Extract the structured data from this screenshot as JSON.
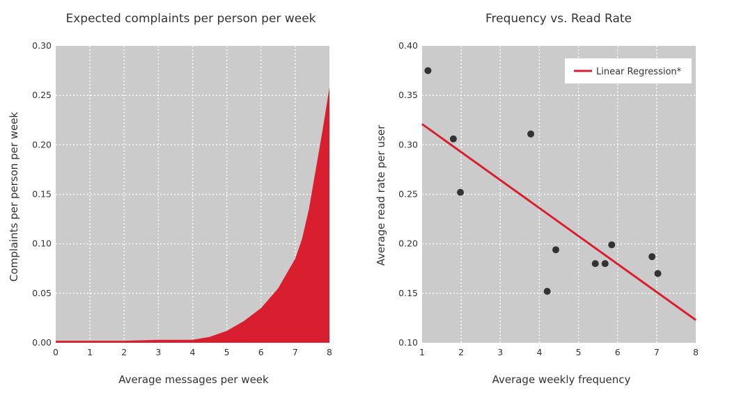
{
  "chart_data": [
    {
      "type": "area",
      "title": "Expected complaints per person per week",
      "xlabel": "Average messages per week",
      "ylabel": "Complaints per person per week",
      "xlim": [
        0,
        8
      ],
      "ylim": [
        0,
        0.3
      ],
      "x_ticks": [
        "0",
        "1",
        "2",
        "3",
        "4",
        "5",
        "6",
        "7",
        "8"
      ],
      "y_ticks": [
        "0.00",
        "0.05",
        "0.10",
        "0.15",
        "0.20",
        "0.25",
        "0.30"
      ],
      "grid": true,
      "fill_color": "#d91f2f",
      "series": [
        {
          "x": [
            0,
            1,
            2,
            3,
            3.5,
            4,
            4.5,
            5,
            5.5,
            6,
            6.5,
            7,
            7.2,
            7.4,
            7.6,
            7.8,
            8
          ],
          "values": [
            0.002,
            0.002,
            0.002,
            0.003,
            0.003,
            0.003,
            0.006,
            0.012,
            0.022,
            0.035,
            0.055,
            0.085,
            0.105,
            0.135,
            0.175,
            0.215,
            0.258
          ]
        }
      ]
    },
    {
      "type": "scatter",
      "title": "Frequency vs. Read Rate",
      "xlabel": "Average weekly frequency",
      "ylabel": "Average read rate per user",
      "xlim": [
        1,
        8
      ],
      "ylim": [
        0.1,
        0.4
      ],
      "x_ticks": [
        "1",
        "2",
        "3",
        "4",
        "5",
        "6",
        "7",
        "8"
      ],
      "y_ticks": [
        "0.10",
        "0.15",
        "0.20",
        "0.25",
        "0.30",
        "0.35",
        "0.40"
      ],
      "grid": true,
      "legend": {
        "position": "top-right",
        "entries": [
          "Linear Regression*"
        ]
      },
      "point_color": "#333333",
      "line_color": "#d91f2f",
      "points": [
        {
          "x": 1.15,
          "y": 0.375
        },
        {
          "x": 1.8,
          "y": 0.306
        },
        {
          "x": 1.98,
          "y": 0.252
        },
        {
          "x": 3.78,
          "y": 0.311
        },
        {
          "x": 4.2,
          "y": 0.152
        },
        {
          "x": 4.42,
          "y": 0.194
        },
        {
          "x": 5.43,
          "y": 0.18
        },
        {
          "x": 5.68,
          "y": 0.18
        },
        {
          "x": 5.85,
          "y": 0.199
        },
        {
          "x": 6.88,
          "y": 0.187
        },
        {
          "x": 7.03,
          "y": 0.17
        }
      ],
      "regression": {
        "name": "Linear Regression*",
        "x": [
          1,
          8
        ],
        "y": [
          0.321,
          0.123
        ]
      }
    }
  ]
}
